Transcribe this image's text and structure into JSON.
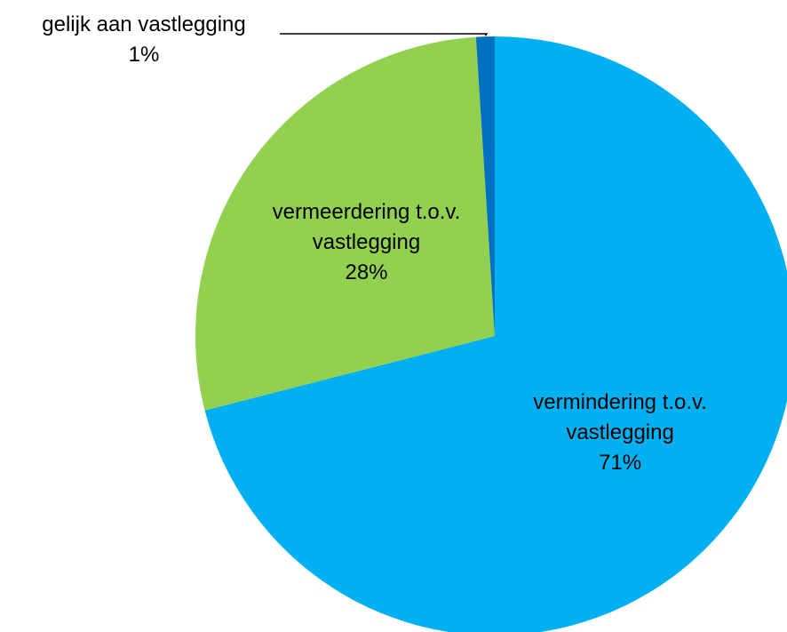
{
  "chart_data": {
    "type": "pie",
    "categories": [
      "vermindering t.o.v. vastlegging",
      "vermeerdering t.o.v. vastlegging",
      "gelijk aan vastlegging"
    ],
    "values": [
      71,
      28,
      1
    ],
    "value_labels": [
      "71%",
      "28%",
      "1%"
    ],
    "colors": [
      "#00b0f0",
      "#92d050",
      "#0070c0"
    ]
  }
}
